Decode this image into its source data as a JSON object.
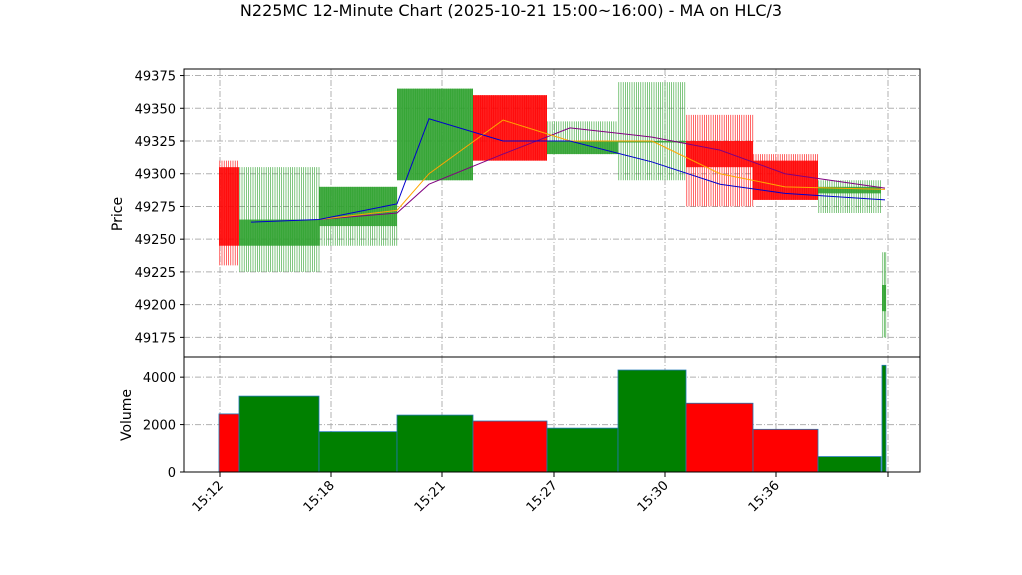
{
  "chart_data": {
    "type": "candlestick",
    "title": "N225MC 12-Minute Chart (2025-10-21 15:00~16:00) - MA on HLC/3",
    "price_panel": {
      "ylabel": "Price",
      "ylim": [
        49160,
        49380
      ],
      "yticks": [
        49175,
        49200,
        49225,
        49250,
        49275,
        49300,
        49325,
        49350,
        49375
      ],
      "grid": true
    },
    "volume_panel": {
      "ylabel": "Volume",
      "ylim": [
        0,
        4850
      ],
      "yticks": [
        0,
        2000,
        4000
      ],
      "grid": true
    },
    "x_tick_labels": [
      "15:12",
      "15:18",
      "15:21",
      "15:27",
      "15:30",
      "15:36"
    ],
    "colors": {
      "up": "#2ca02c",
      "down": "#ff0000",
      "ma_fast": "#0000cd",
      "ma_mid": "#ffa500",
      "ma_slow": "#800080",
      "volume_up": "#008000",
      "volume_down": "#ff0000",
      "volume_edge": "#1f77b4"
    },
    "candles": [
      {
        "open": 49305,
        "high": 49310,
        "low": 49230,
        "close": 49245,
        "volume": 2450
      },
      {
        "open": 49245,
        "high": 49305,
        "low": 49225,
        "close": 49265,
        "volume": 3200
      },
      {
        "open": 49260,
        "high": 49290,
        "low": 49245,
        "close": 49290,
        "volume": 1700
      },
      {
        "open": 49295,
        "high": 49365,
        "low": 49295,
        "close": 49365,
        "volume": 2400
      },
      {
        "open": 49360,
        "high": 49360,
        "low": 49310,
        "close": 49310,
        "volume": 2150
      },
      {
        "open": 49315,
        "high": 49340,
        "low": 49315,
        "close": 49325,
        "volume": 1850
      },
      {
        "open": 49325,
        "high": 49370,
        "low": 49295,
        "close": 49325,
        "volume": 4300
      },
      {
        "open": 49325,
        "high": 49345,
        "low": 49275,
        "close": 49305,
        "volume": 2900
      },
      {
        "open": 49310,
        "high": 49315,
        "low": 49280,
        "close": 49280,
        "volume": 1800
      },
      {
        "open": 49285,
        "high": 49295,
        "low": 49270,
        "close": 49290,
        "volume": 650
      },
      {
        "open": 49195,
        "high": 49240,
        "low": 49175,
        "close": 49215,
        "volume": 4500
      }
    ],
    "ma_fast": [
      null,
      49263,
      49265,
      49277,
      49342,
      49325,
      49325,
      49309,
      49292,
      49285,
      49280
    ],
    "ma_mid": [
      null,
      null,
      49265,
      49272,
      49300,
      49341,
      49325,
      49325,
      49300,
      49290,
      49288
    ],
    "ma_slow": [
      null,
      null,
      49265,
      49270,
      49292,
      49315,
      49335,
      49328,
      49318,
      49300,
      49289
    ]
  }
}
